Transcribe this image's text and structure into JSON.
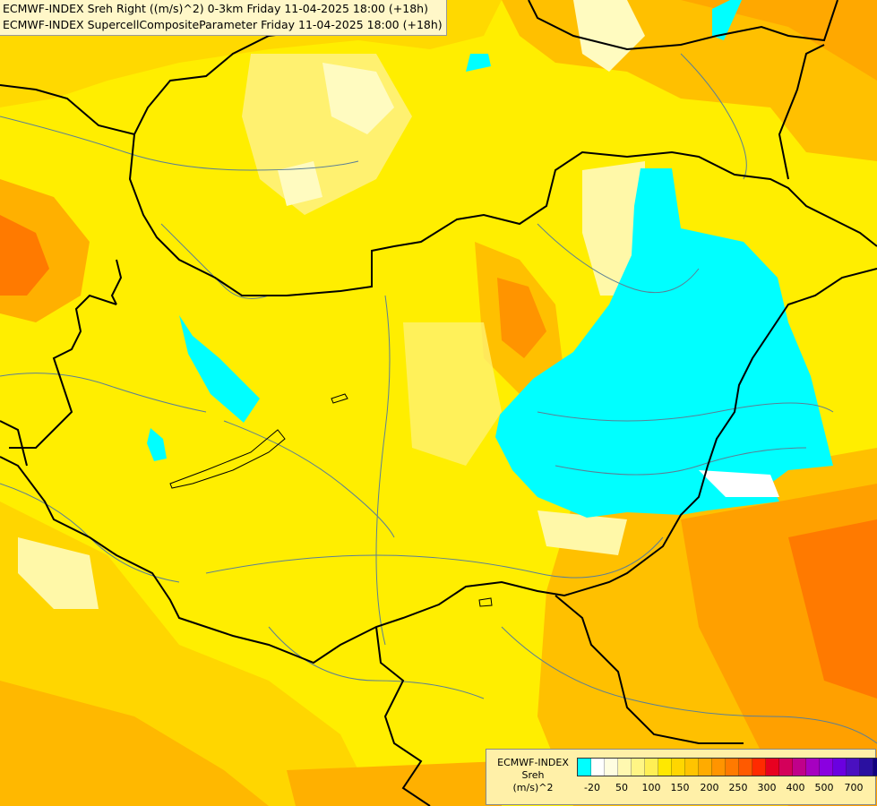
{
  "title": {
    "line1": "ECMWF-INDEX Sreh Right ((m/s)^2) 0-3km Friday 11-04-2025 18:00 (+18h)",
    "line2": "ECMWF-INDEX SupercellCompositeParameter Friday 11-04-2025 18:00 (+18h)"
  },
  "legend": {
    "title": "ECMWF-INDEX",
    "subtitle": "Sreh",
    "unit": "(m/s)^2",
    "ticks": [
      "-20",
      "50",
      "100",
      "150",
      "200",
      "250",
      "300",
      "400",
      "500",
      "700"
    ],
    "colors": [
      "#00ffff",
      "#ffffff",
      "#fffde0",
      "#fff8b0",
      "#fff585",
      "#ffef55",
      "#ffe800",
      "#ffd600",
      "#ffc400",
      "#ffab00",
      "#ff9400",
      "#ff7a00",
      "#ff5a00",
      "#ff2a00",
      "#e80020",
      "#d4005a",
      "#c0008a",
      "#a600c0",
      "#8a00e0",
      "#6a00e0",
      "#4a10c0",
      "#2a10a0",
      "#100080"
    ]
  },
  "colors": {
    "background_yellow": "#ffee00",
    "light_yellow": "#fff9a0",
    "orange": "#ffb400",
    "dark_orange": "#ff7a00",
    "cyan_area": "#00ffff",
    "border": "#000000",
    "river": "#5b7f95"
  }
}
